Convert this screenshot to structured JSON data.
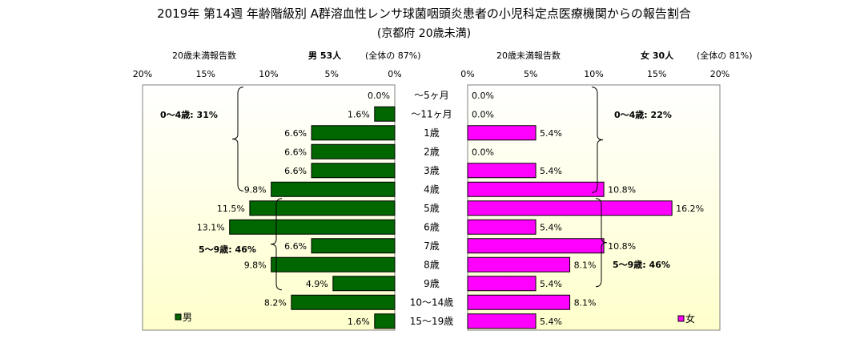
{
  "title": "2019年 第14週 年齢階級別 A群溶血性レンサ球菌咽頭炎患者の小児科定点医療機関からの報告割合",
  "subtitle": "(京都府 20歳未満)",
  "male_header": {
    "axis_caption": "20歳未満報告数",
    "count_label": "男  53人",
    "share_label": "(全体の  87%)"
  },
  "female_header": {
    "axis_caption": "20歳未満報告数",
    "count_label": "女  30人",
    "share_label": "(全体の  81%)"
  },
  "colors": {
    "male_bar": "#006600",
    "female_bar": "#ff00ff",
    "panel_top": "#ffffff",
    "panel_bottom": "#ffffcc"
  },
  "chart_data": {
    "type": "bar",
    "orientation": "horizontal-population-pyramid",
    "categories": [
      "～5ヶ月",
      "～11ヶ月",
      "1歳",
      "2歳",
      "3歳",
      "4歳",
      "5歳",
      "6歳",
      "7歳",
      "8歳",
      "9歳",
      "10～14歳",
      "15～19歳"
    ],
    "unit": "%",
    "xlim": [
      0,
      20
    ],
    "ticks": [
      0,
      5,
      10,
      15,
      20
    ],
    "tick_labels": [
      "0%",
      "5%",
      "10%",
      "15%",
      "20%"
    ],
    "series": [
      {
        "name": "男",
        "values": [
          0.0,
          1.6,
          6.6,
          6.6,
          6.6,
          9.8,
          11.5,
          13.1,
          6.6,
          9.8,
          4.9,
          8.2,
          1.6
        ],
        "labels": [
          "0.0%",
          "1.6%",
          "6.6%",
          "6.6%",
          "6.6%",
          "9.8%",
          "11.5%",
          "13.1%",
          "6.6%",
          "9.8%",
          "4.9%",
          "8.2%",
          "1.6%"
        ]
      },
      {
        "name": "女",
        "values": [
          0.0,
          0.0,
          5.4,
          0.0,
          5.4,
          10.8,
          16.2,
          5.4,
          10.8,
          8.1,
          5.4,
          8.1,
          5.4
        ],
        "labels": [
          "0.0%",
          "0.0%",
          "5.4%",
          "0.0%",
          "5.4%",
          "10.8%",
          "16.2%",
          "5.4%",
          "10.8%",
          "8.1%",
          "5.4%",
          "8.1%",
          "5.4%"
        ]
      }
    ],
    "annotations": {
      "male_0_4": "0～4歳: 31%",
      "male_5_9": "5～9歳: 46%",
      "female_0_4": "0～4歳: 22%",
      "female_5_9": "5～9歳: 46%"
    },
    "legend": {
      "male": "男",
      "female": "女",
      "placement": "bottom-corners"
    }
  }
}
